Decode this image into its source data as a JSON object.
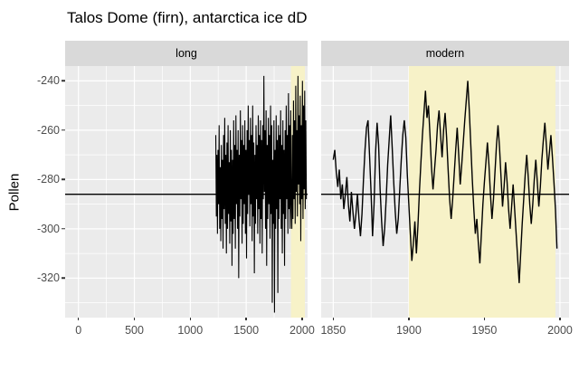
{
  "title": "Talos Dome (firn), antarctica ice dD",
  "y_axis_label": "Pollen",
  "colors": {
    "bg": "#FFFFFF",
    "panel_bg": "#EBEBEB",
    "strip_bg": "#D9D9D9",
    "grid": "#FFFFFF",
    "highlight": "#F7F2C8",
    "series": "#000000",
    "hline": "#000000",
    "text": "#000000",
    "tick_label": "#4D4D4D",
    "tick_mark": "#333333"
  },
  "chart_data": {
    "type": "line",
    "title": "Talos Dome (firn), antarctica ice dD",
    "ylabel": "Pollen",
    "ylim": [
      -336,
      -234
    ],
    "y_ticks": [
      -240,
      -260,
      -280,
      -300,
      -320
    ],
    "y_minor": [
      -250,
      -270,
      -290,
      -310,
      -330
    ],
    "hline": -286,
    "legend": "none",
    "grid": "on",
    "panels": [
      {
        "label": "long",
        "xlim": [
          -119,
          2049
        ],
        "x_ticks": [
          0,
          500,
          1000,
          1500,
          2000
        ],
        "x_minor": [
          250,
          750,
          1250,
          1750
        ],
        "highlight": [
          1900,
          2025
        ],
        "series": {
          "x_start": 1228,
          "x_step": 5,
          "values": [
            -262,
            -295,
            -270,
            -302,
            -268,
            -290,
            -258,
            -300,
            -275,
            -305,
            -266,
            -296,
            -272,
            -308,
            -262,
            -292,
            -255,
            -298,
            -270,
            -310,
            -265,
            -300,
            -258,
            -294,
            -273,
            -306,
            -260,
            -297,
            -268,
            -315,
            -272,
            -302,
            -256,
            -296,
            -266,
            -308,
            -254,
            -290,
            -268,
            -300,
            -260,
            -320,
            -270,
            -295,
            -252,
            -288,
            -264,
            -306,
            -258,
            -298,
            -266,
            -290,
            -256,
            -302,
            -268,
            -312,
            -260,
            -294,
            -250,
            -286,
            -264,
            -299,
            -255,
            -290,
            -262,
            -305,
            -250,
            -295,
            -265,
            -318,
            -270,
            -298,
            -258,
            -288,
            -266,
            -302,
            -254,
            -292,
            -262,
            -306,
            -256,
            -296,
            -264,
            -310,
            -258,
            -288,
            -238,
            -285,
            -260,
            -300,
            -252,
            -315,
            -266,
            -296,
            -255,
            -290,
            -262,
            -304,
            -250,
            -294,
            -258,
            -330,
            -272,
            -298,
            -256,
            -334,
            -268,
            -300,
            -254,
            -292,
            -264,
            -326,
            -258,
            -296,
            -262,
            -288,
            -252,
            -300,
            -266,
            -310,
            -256,
            -294,
            -268,
            -315,
            -260,
            -296,
            -250,
            -288,
            -262,
            -302,
            -245,
            -292,
            -258,
            -300,
            -252,
            -290,
            -300,
            -262,
            -296,
            -248,
            -288,
            -256,
            -298,
            -242,
            -285,
            -260,
            -295,
            -238,
            -282,
            -254,
            -290,
            -246,
            -305,
            -258,
            -288,
            -240,
            -296,
            -250,
            -284,
            -244,
            -292,
            -256,
            -288
          ]
        }
      },
      {
        "label": "modern",
        "xlim": [
          1842,
          2006
        ],
        "x_ticks": [
          1850,
          1900,
          1950,
          2000
        ],
        "x_minor": [
          1875,
          1925,
          1975
        ],
        "highlight": [
          1900,
          1997
        ],
        "series": {
          "x_start": 1850,
          "x_step": 1,
          "values": [
            -272,
            -268,
            -277,
            -283,
            -276,
            -288,
            -282,
            -292,
            -286,
            -279,
            -290,
            -297,
            -285,
            -293,
            -300,
            -294,
            -286,
            -296,
            -303,
            -294,
            -280,
            -268,
            -259,
            -256,
            -270,
            -285,
            -303,
            -290,
            -269,
            -257,
            -266,
            -284,
            -297,
            -307,
            -300,
            -288,
            -274,
            -264,
            -254,
            -267,
            -281,
            -293,
            -302,
            -296,
            -284,
            -272,
            -262,
            -256,
            -263,
            -278,
            -290,
            -302,
            -313,
            -306,
            -297,
            -310,
            -299,
            -285,
            -273,
            -262,
            -253,
            -244,
            -255,
            -250,
            -262,
            -275,
            -284,
            -276,
            -268,
            -258,
            -252,
            -262,
            -271,
            -260,
            -253,
            -263,
            -276,
            -288,
            -296,
            -288,
            -278,
            -268,
            -259,
            -270,
            -282,
            -274,
            -265,
            -256,
            -248,
            -240,
            -252,
            -266,
            -280,
            -292,
            -302,
            -296,
            -306,
            -314,
            -302,
            -290,
            -281,
            -273,
            -265,
            -274,
            -286,
            -296,
            -288,
            -277,
            -266,
            -258,
            -267,
            -279,
            -291,
            -283,
            -273,
            -281,
            -292,
            -300,
            -291,
            -282,
            -292,
            -302,
            -312,
            -322,
            -310,
            -298,
            -288,
            -278,
            -270,
            -279,
            -290,
            -298,
            -290,
            -280,
            -272,
            -281,
            -291,
            -283,
            -272,
            -264,
            -257,
            -266,
            -276,
            -269,
            -262,
            -271,
            -281,
            -292,
            -308
          ]
        }
      }
    ]
  }
}
